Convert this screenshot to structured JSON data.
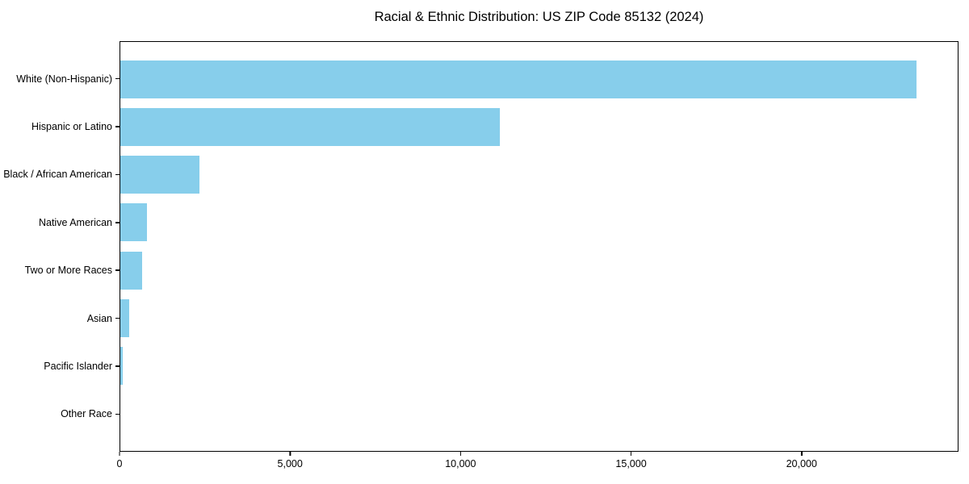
{
  "chart_data": {
    "type": "bar",
    "orientation": "horizontal",
    "title": "Racial & Ethnic Distribution: US ZIP Code 85132 (2024)",
    "categories": [
      "White (Non-Hispanic)",
      "Hispanic or Latino",
      "Black / African American",
      "Native American",
      "Two or More Races",
      "Asian",
      "Pacific Islander",
      "Other Race"
    ],
    "values": [
      23400,
      11150,
      2330,
      780,
      650,
      250,
      80,
      0
    ],
    "xlabel": "",
    "ylabel": "",
    "xlim": [
      0,
      24600
    ],
    "xticks": {
      "values": [
        0,
        5000,
        10000,
        15000,
        20000
      ],
      "labels": [
        "0",
        "5,000",
        "10,000",
        "15,000",
        "20,000"
      ]
    },
    "bar_color": "#87CEEB",
    "axis_color": "#000000",
    "background_color": "#ffffff",
    "grid": false,
    "legend": false
  }
}
